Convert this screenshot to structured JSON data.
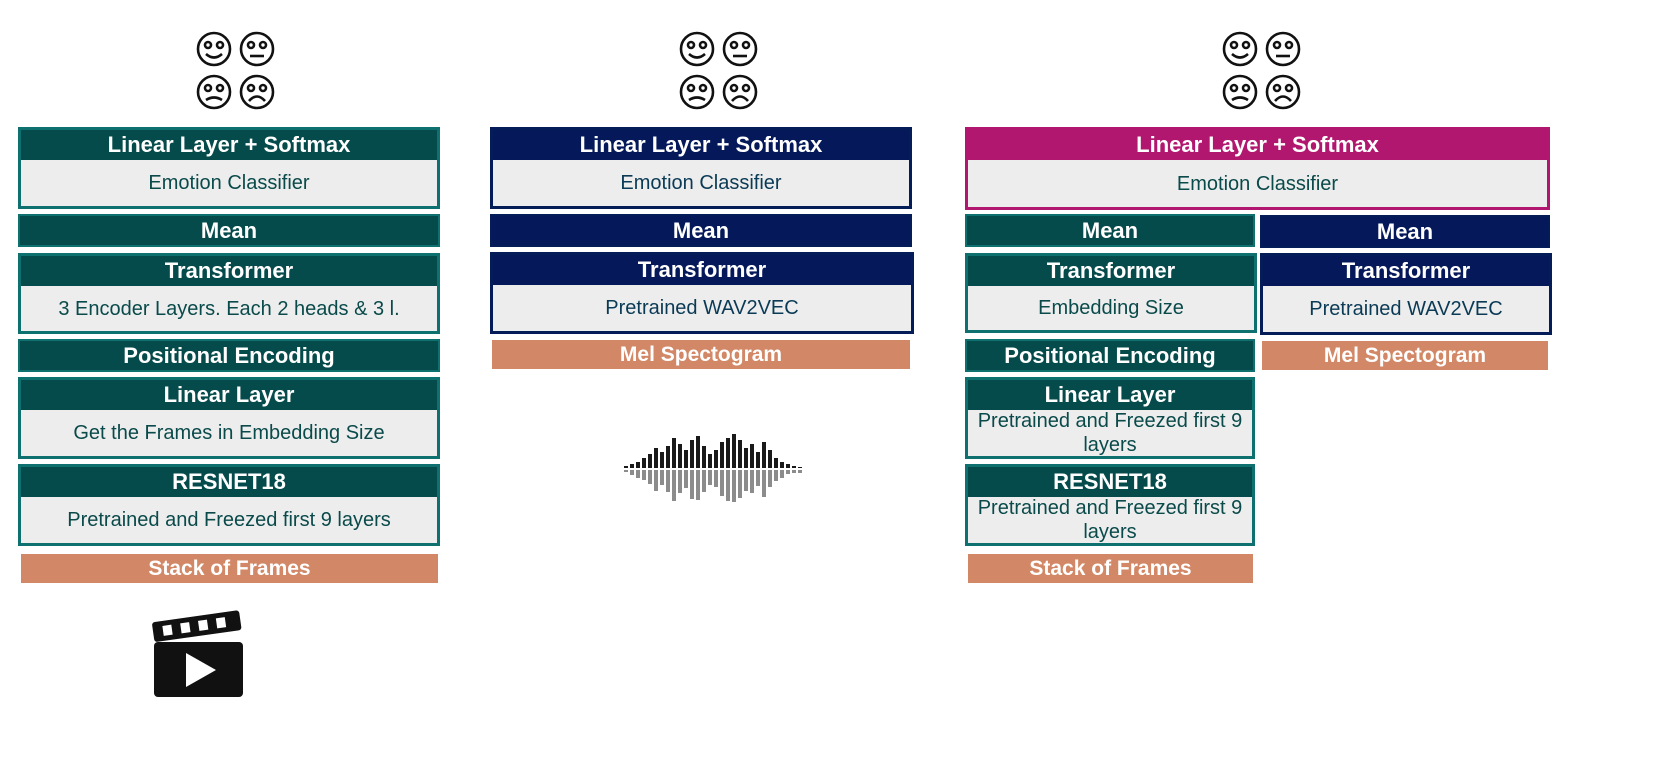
{
  "colors": {
    "teal": "#064b4b",
    "navy": "#05195a",
    "magenta": "#b1176f",
    "orange": "#d28866"
  },
  "icons": {
    "emotions": "emotion-faces-icon",
    "audio": "sound-wave-icon",
    "video": "clapperboard-icon"
  },
  "video_model": {
    "classifier": {
      "title": "Linear Layer + Softmax",
      "body": "Emotion Classifier"
    },
    "mean": "Mean",
    "transformer": {
      "title": "Transformer",
      "body": "3 Encoder Layers. Each 2 heads & 3 l."
    },
    "positional_encoding": "Positional Encoding",
    "linear": {
      "title": "Linear Layer",
      "body": "Get the Frames in Embedding Size"
    },
    "resnet": {
      "title": "RESNET18",
      "body": "Pretrained and Freezed first 9 layers"
    },
    "input": "Stack of Frames"
  },
  "audio_model": {
    "classifier": {
      "title": "Linear Layer + Softmax",
      "body": "Emotion Classifier"
    },
    "mean": "Mean",
    "transformer": {
      "title": "Transformer",
      "body": "Pretrained WAV2VEC"
    },
    "input": "Mel Spectogram"
  },
  "fusion_model": {
    "classifier": {
      "title": "Linear Layer + Softmax",
      "body": "Emotion Classifier"
    },
    "video_branch": {
      "mean": "Mean",
      "transformer": {
        "title": "Transformer",
        "body": "Embedding Size"
      },
      "positional_encoding": "Positional Encoding",
      "linear": {
        "title": "Linear Layer",
        "body": "Pretrained and Freezed first 9 layers"
      },
      "resnet": {
        "title": "RESNET18",
        "body": "Pretrained and Freezed first 9 layers"
      },
      "input": "Stack of Frames"
    },
    "audio_branch": {
      "mean": "Mean",
      "transformer": {
        "title": "Transformer",
        "body": "Pretrained WAV2VEC"
      },
      "input": "Mel Spectogram"
    }
  }
}
